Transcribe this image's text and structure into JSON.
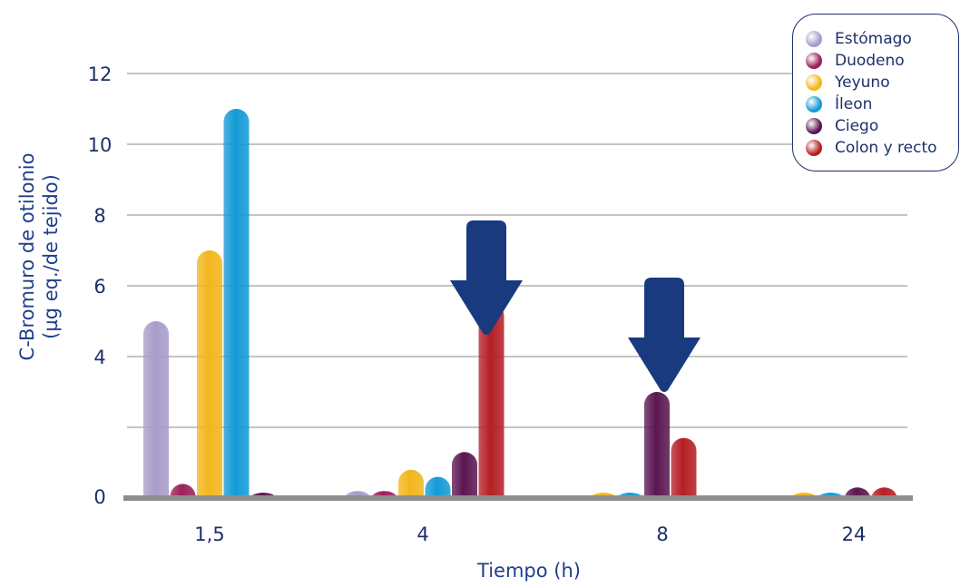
{
  "chart_data": {
    "type": "bar",
    "categories": [
      "1,5",
      "4",
      "8",
      "24"
    ],
    "xlabel": "Tiempo (h)",
    "ylabel_lines": [
      "C-Bromuro de otilonio",
      "(µg eq./de tejido)"
    ],
    "ylim": [
      0,
      12
    ],
    "yticks": [
      "0",
      "4",
      "6",
      "8",
      "10",
      "12"
    ],
    "legend_position": "top-right",
    "grid": true,
    "series": [
      {
        "name": "Estómago",
        "color": "#a79cc8",
        "values": [
          5.0,
          0.2,
          null,
          null
        ]
      },
      {
        "name": "Duodeno",
        "color": "#9c1f5a",
        "values": [
          0.4,
          0.2,
          null,
          null
        ]
      },
      {
        "name": "Yeyuno",
        "color": "#f2b61d",
        "values": [
          7.0,
          0.8,
          0.1,
          0.1
        ]
      },
      {
        "name": "Íleon",
        "color": "#149ad6",
        "values": [
          11.0,
          0.6,
          0.1,
          0.1
        ]
      },
      {
        "name": "Ciego",
        "color": "#5a1650",
        "values": [
          0.1,
          1.3,
          3.0,
          0.3
        ]
      },
      {
        "name": "Colon y recto",
        "color": "#b51f24",
        "values": [
          null,
          5.5,
          1.7,
          0.3
        ]
      }
    ],
    "annotations": [
      {
        "type": "arrow-down",
        "category": "4",
        "color": "#1a3a80"
      },
      {
        "type": "arrow-down",
        "category": "8",
        "color": "#1a3a80"
      }
    ]
  }
}
